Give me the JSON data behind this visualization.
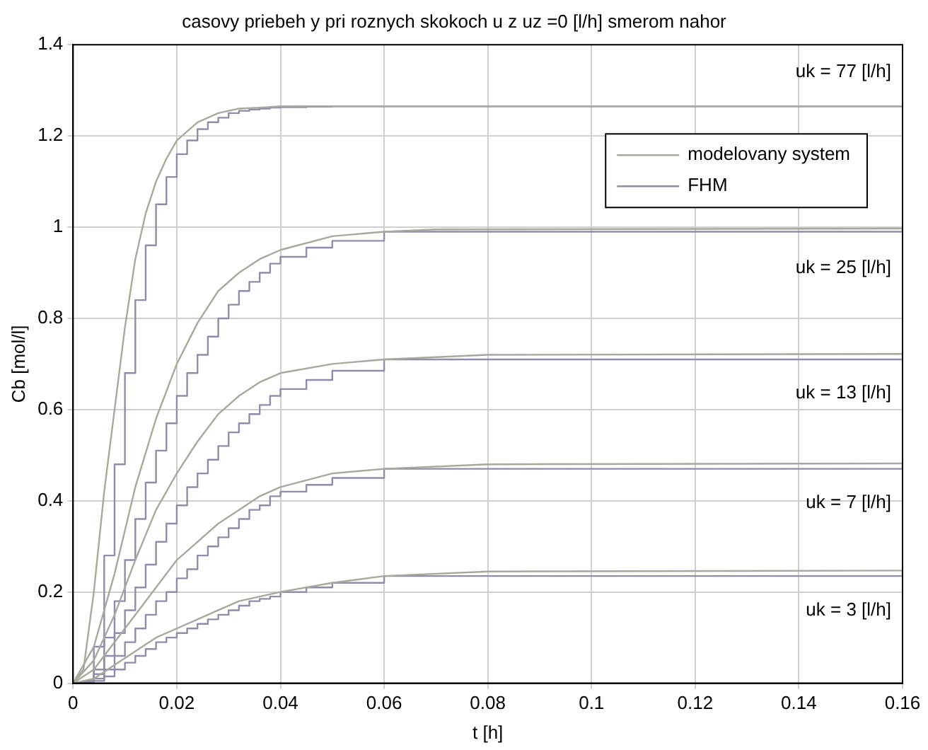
{
  "chart_data": {
    "type": "line",
    "title": "casovy priebeh y pri roznych skokoch u z uz =0 [l/h] smerom nahor",
    "xlabel": "t [h]",
    "ylabel": "Cb [mol/l]",
    "xlim": [
      0,
      0.16
    ],
    "xticks": [
      0,
      0.02,
      0.04,
      0.06,
      0.08,
      0.1,
      0.12,
      0.14,
      0.16
    ],
    "ylim": [
      0,
      1.4
    ],
    "yticks": [
      0,
      0.2,
      0.4,
      0.6,
      0.8,
      1,
      1.2,
      1.4
    ],
    "grid": true,
    "legend": "top right",
    "marker": "none",
    "line_style": "solid",
    "annotations": [
      "uk = 77 [l/h]",
      "uk = 25 [l/h]",
      "uk = 13 [l/h]",
      "uk = 7 [l/h]",
      "uk = 3 [l/h]"
    ],
    "series": [
      {
        "name": "modelovany system",
        "type": "line",
        "color": "#a8a89c",
        "x": [
          0,
          0.002,
          0.004,
          0.006,
          0.008,
          0.01,
          0.012,
          0.014,
          0.016,
          0.018,
          0.02,
          0.024,
          0.028,
          0.032,
          0.036,
          0.04,
          0.05,
          0.06,
          0.16
        ],
        "values": [
          0,
          0.03,
          0.2,
          0.42,
          0.6,
          0.78,
          0.93,
          1.03,
          1.1,
          1.15,
          1.19,
          1.23,
          1.25,
          1.26,
          1.262,
          1.265,
          1.265,
          1.265,
          1.265
        ]
      },
      {
        "type": "line",
        "color": "#a8a89c",
        "x": [
          0,
          0.004,
          0.008,
          0.012,
          0.016,
          0.02,
          0.024,
          0.028,
          0.032,
          0.036,
          0.04,
          0.05,
          0.06,
          0.07,
          0.16
        ],
        "values": [
          0,
          0.08,
          0.24,
          0.43,
          0.58,
          0.7,
          0.79,
          0.86,
          0.9,
          0.93,
          0.95,
          0.98,
          0.99,
          0.995,
          0.997
        ]
      },
      {
        "type": "line",
        "color": "#a8a89c",
        "x": [
          0,
          0.004,
          0.008,
          0.012,
          0.016,
          0.02,
          0.024,
          0.028,
          0.032,
          0.036,
          0.04,
          0.05,
          0.06,
          0.08,
          0.16
        ],
        "values": [
          0,
          0.05,
          0.15,
          0.27,
          0.38,
          0.46,
          0.53,
          0.59,
          0.63,
          0.66,
          0.68,
          0.7,
          0.71,
          0.72,
          0.722
        ]
      },
      {
        "type": "line",
        "color": "#a8a89c",
        "x": [
          0,
          0.004,
          0.008,
          0.012,
          0.016,
          0.02,
          0.024,
          0.028,
          0.032,
          0.036,
          0.04,
          0.05,
          0.06,
          0.08,
          0.16
        ],
        "values": [
          0,
          0.03,
          0.09,
          0.15,
          0.21,
          0.27,
          0.31,
          0.35,
          0.38,
          0.41,
          0.43,
          0.46,
          0.47,
          0.48,
          0.482
        ]
      },
      {
        "type": "line",
        "color": "#a8a89c",
        "x": [
          0,
          0.004,
          0.008,
          0.012,
          0.016,
          0.02,
          0.024,
          0.028,
          0.032,
          0.036,
          0.04,
          0.05,
          0.06,
          0.08,
          0.16
        ],
        "values": [
          0,
          0.01,
          0.04,
          0.07,
          0.1,
          0.12,
          0.14,
          0.16,
          0.18,
          0.19,
          0.2,
          0.22,
          0.235,
          0.245,
          0.247
        ]
      },
      {
        "name": "FHM",
        "type": "step",
        "color": "#8e8eaa",
        "x": [
          0,
          0.002,
          0.004,
          0.006,
          0.008,
          0.01,
          0.012,
          0.014,
          0.016,
          0.018,
          0.02,
          0.022,
          0.024,
          0.026,
          0.028,
          0.03,
          0.032,
          0.034,
          0.036,
          0.038,
          0.04,
          0.045,
          0.05,
          0.06,
          0.16
        ],
        "values": [
          0,
          0.005,
          0.08,
          0.28,
          0.48,
          0.68,
          0.84,
          0.96,
          1.05,
          1.11,
          1.16,
          1.19,
          1.215,
          1.23,
          1.24,
          1.25,
          1.255,
          1.258,
          1.26,
          1.262,
          1.263,
          1.264,
          1.265,
          1.265,
          1.265
        ]
      },
      {
        "type": "step",
        "color": "#8e8eaa",
        "x": [
          0,
          0.002,
          0.004,
          0.006,
          0.008,
          0.01,
          0.012,
          0.014,
          0.016,
          0.018,
          0.02,
          0.022,
          0.024,
          0.026,
          0.028,
          0.03,
          0.032,
          0.034,
          0.036,
          0.038,
          0.04,
          0.045,
          0.05,
          0.06,
          0.16
        ],
        "values": [
          0,
          0.005,
          0.03,
          0.1,
          0.18,
          0.27,
          0.36,
          0.44,
          0.51,
          0.57,
          0.63,
          0.68,
          0.72,
          0.76,
          0.8,
          0.83,
          0.86,
          0.88,
          0.9,
          0.92,
          0.935,
          0.955,
          0.97,
          0.99,
          0.997
        ]
      },
      {
        "type": "step",
        "color": "#8e8eaa",
        "x": [
          0,
          0.002,
          0.004,
          0.006,
          0.008,
          0.01,
          0.012,
          0.014,
          0.016,
          0.018,
          0.02,
          0.022,
          0.024,
          0.026,
          0.028,
          0.03,
          0.032,
          0.034,
          0.036,
          0.038,
          0.04,
          0.045,
          0.05,
          0.06,
          0.16
        ],
        "values": [
          0,
          0.003,
          0.02,
          0.06,
          0.11,
          0.16,
          0.21,
          0.26,
          0.31,
          0.35,
          0.39,
          0.43,
          0.46,
          0.49,
          0.52,
          0.55,
          0.57,
          0.59,
          0.61,
          0.63,
          0.645,
          0.665,
          0.685,
          0.71,
          0.722
        ]
      },
      {
        "type": "step",
        "color": "#8e8eaa",
        "x": [
          0,
          0.002,
          0.004,
          0.006,
          0.008,
          0.01,
          0.012,
          0.014,
          0.016,
          0.018,
          0.02,
          0.022,
          0.024,
          0.026,
          0.028,
          0.03,
          0.032,
          0.034,
          0.036,
          0.038,
          0.04,
          0.045,
          0.05,
          0.06,
          0.16
        ],
        "values": [
          0,
          0.002,
          0.01,
          0.03,
          0.06,
          0.09,
          0.12,
          0.15,
          0.18,
          0.2,
          0.23,
          0.25,
          0.28,
          0.3,
          0.32,
          0.34,
          0.36,
          0.38,
          0.39,
          0.41,
          0.42,
          0.435,
          0.45,
          0.47,
          0.482
        ]
      },
      {
        "type": "step",
        "color": "#8e8eaa",
        "x": [
          0,
          0.002,
          0.004,
          0.006,
          0.008,
          0.01,
          0.012,
          0.014,
          0.016,
          0.018,
          0.02,
          0.022,
          0.024,
          0.026,
          0.028,
          0.03,
          0.032,
          0.034,
          0.036,
          0.038,
          0.04,
          0.045,
          0.05,
          0.06,
          0.16
        ],
        "values": [
          0,
          0.001,
          0.005,
          0.015,
          0.03,
          0.045,
          0.06,
          0.075,
          0.09,
          0.1,
          0.11,
          0.12,
          0.13,
          0.14,
          0.15,
          0.16,
          0.17,
          0.18,
          0.185,
          0.19,
          0.2,
          0.21,
          0.22,
          0.235,
          0.247
        ]
      }
    ]
  }
}
